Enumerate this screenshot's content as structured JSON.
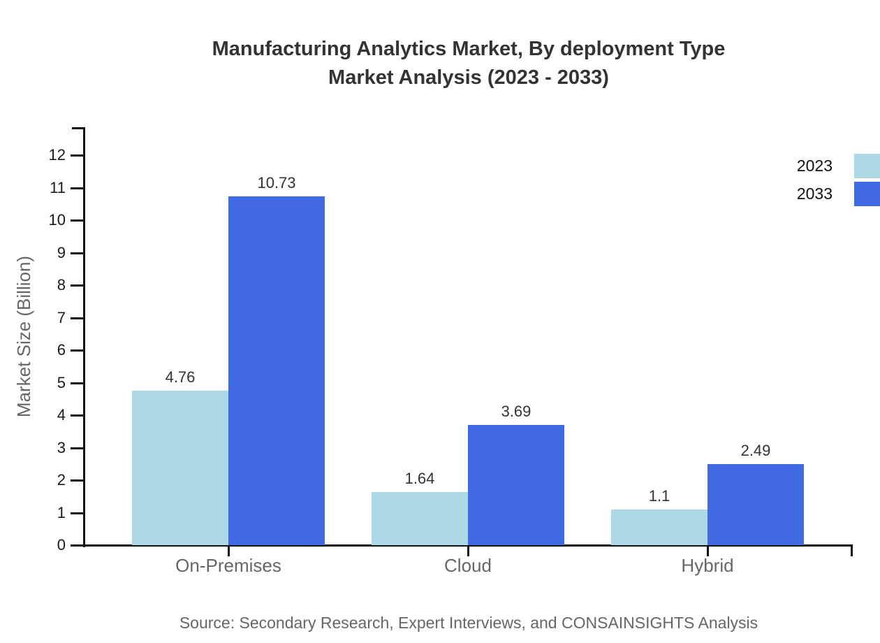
{
  "title": {
    "line1": "Manufacturing Analytics Market, By deployment Type",
    "line2": "Market Analysis (2023 - 2033)"
  },
  "chart_data": {
    "type": "bar",
    "categories": [
      "On-Premises",
      "Cloud",
      "Hybrid"
    ],
    "series": [
      {
        "name": "2023",
        "color": "#ADD8E6",
        "values": [
          4.76,
          1.64,
          1.1
        ]
      },
      {
        "name": "2033",
        "color": "#4169E1",
        "values": [
          10.73,
          3.69,
          2.49
        ]
      }
    ],
    "title": "Manufacturing Analytics Market, By deployment Type Market Analysis (2023 - 2033)",
    "xlabel": "",
    "ylabel": "Market Size (Billion)",
    "ylim": [
      0,
      12
    ],
    "ytick_step": 1,
    "grid": false,
    "legend_position": "top-right",
    "value_labels_shown": true
  },
  "colors": {
    "series_2023": "#ADD8E6",
    "series_2033": "#4169E1",
    "axis": "#111111",
    "title_text": "#333333",
    "tick_text": "#1a1a1a",
    "muted_text": "#666666"
  },
  "source": "Source: Secondary Research, Expert Interviews, and CONSAINSIGHTS Analysis"
}
